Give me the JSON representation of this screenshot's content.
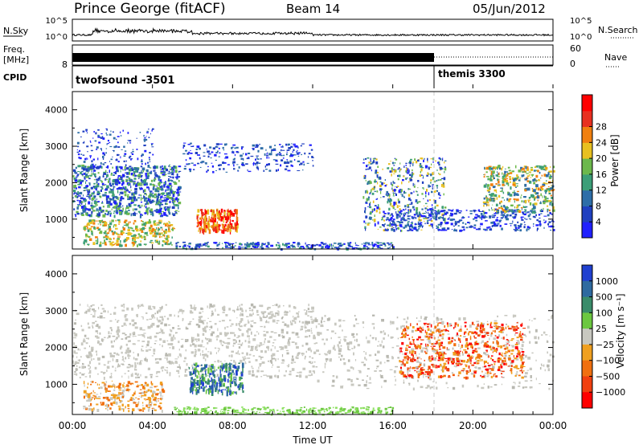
{
  "header": {
    "station": "Prince George (fitACF)",
    "beam": "Beam 14",
    "date": "05/Jun/2012"
  },
  "nsky_panel": {
    "left_label": "N.Sky",
    "right_label": "N.Search",
    "left_ticks": [
      "10^5",
      "10^0"
    ],
    "right_ticks": [
      "10^5",
      "10^0"
    ]
  },
  "freq_panel": {
    "left_label_1": "Freq.",
    "left_label_2": "[MHz]",
    "left_tick": "8",
    "right_label": "Nave",
    "right_ticks": [
      "60",
      "0"
    ]
  },
  "cpid_panel": {
    "label": "CPID",
    "modes": [
      {
        "name": "twofsound -3501",
        "start_hour": 0
      },
      {
        "name": "themis 3300",
        "start_hour": 18
      }
    ]
  },
  "time_axis": {
    "label": "Time UT",
    "ticks": [
      "00:00",
      "04:00",
      "08:00",
      "12:00",
      "16:00",
      "20:00",
      "00:00"
    ],
    "range_hours": [
      0,
      24
    ]
  },
  "chart_data": [
    {
      "type": "heatmap",
      "title": "Power",
      "ylabel": "Slant Range [km]",
      "ylim": [
        180,
        4500
      ],
      "yticks": [
        1000,
        2000,
        3000,
        4000
      ],
      "colorbar": {
        "label": "Power [dB]",
        "ticks": [
          "4",
          "8",
          "12",
          "16",
          "20",
          "24",
          "28"
        ],
        "colors": [
          "#2020ff",
          "#2040c0",
          "#2e6ea8",
          "#3c9e78",
          "#6cb84c",
          "#e8c020",
          "#f08010",
          "#e83020",
          "#ff0000"
        ]
      },
      "features": [
        {
          "time_hours": [
            0.0,
            5.2
          ],
          "range_km": [
            1200,
            2400
          ],
          "level_db": "8-20"
        },
        {
          "time_hours": [
            6.2,
            8.2
          ],
          "range_km": [
            700,
            1300
          ],
          "level_db": "20-30"
        },
        {
          "time_hours": [
            14.5,
            18.5
          ],
          "range_km": [
            700,
            2700
          ],
          "level_db": "4-16"
        },
        {
          "time_hours": [
            20.5,
            24.0
          ],
          "range_km": [
            1200,
            2500
          ],
          "level_db": "12-24"
        }
      ]
    },
    {
      "type": "heatmap",
      "title": "Velocity",
      "ylabel": "Slant Range [km]",
      "ylim": [
        180,
        4500
      ],
      "yticks": [
        1000,
        2000,
        3000,
        4000
      ],
      "colorbar": {
        "label": "Velocity [m s⁻¹]",
        "ticks": [
          "1000",
          "500",
          "100",
          "25",
          "−25",
          "−100",
          "−500",
          "−1000"
        ],
        "colors": [
          "#2040d0",
          "#2e6aa0",
          "#3a8c6a",
          "#6cc840",
          "#c8c8c0",
          "#f0a020",
          "#f07010",
          "#f04010",
          "#ff0000"
        ]
      },
      "features": [
        {
          "time_hours": [
            0.0,
            12.0
          ],
          "range_km": [
            1200,
            3200
          ],
          "velocity": "-25 to 25"
        },
        {
          "time_hours": [
            5.8,
            8.5
          ],
          "range_km": [
            800,
            1600
          ],
          "velocity": "100 to 500"
        },
        {
          "time_hours": [
            5.0,
            16.0
          ],
          "range_km": [
            200,
            400
          ],
          "velocity": "25 to 100"
        },
        {
          "time_hours": [
            16.3,
            22.5
          ],
          "range_km": [
            1200,
            2700
          ],
          "velocity": "-100 to -1000"
        }
      ]
    }
  ]
}
